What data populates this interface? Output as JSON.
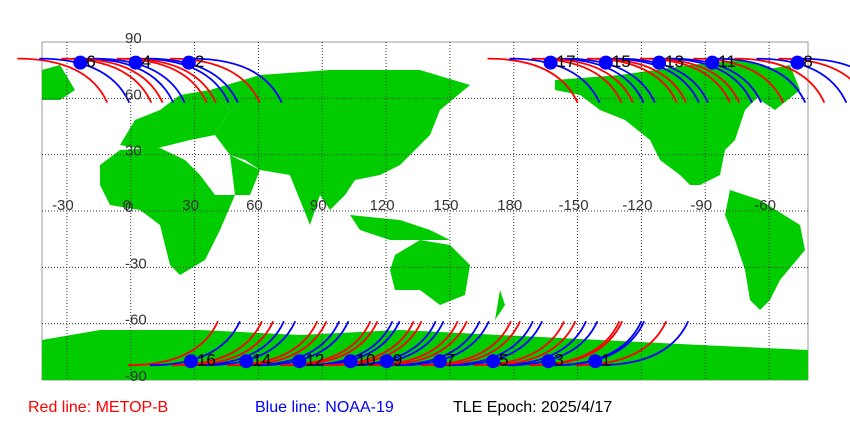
{
  "map": {
    "lon_range": [
      -45,
      315
    ],
    "lat_range": [
      -90,
      90
    ],
    "lon_ticks": [
      -30,
      0,
      30,
      60,
      90,
      120,
      150,
      180,
      {
        "value": 210,
        "label": "-150"
      },
      {
        "value": 240,
        "label": "-120"
      },
      {
        "value": 270,
        "label": "-90"
      },
      {
        "value": 300,
        "label": "-60"
      }
    ],
    "lat_ticks": [
      90,
      60,
      30,
      0,
      -30,
      -60,
      -90
    ],
    "marker_color": "#0000ff"
  },
  "passes": [
    {
      "label": "6",
      "lon": -27,
      "lat": 79
    },
    {
      "label": "4",
      "lon": -1,
      "lat": 79
    },
    {
      "label": "2",
      "lon": 24,
      "lat": 79
    },
    {
      "label": "17",
      "lon": 194,
      "lat": 79
    },
    {
      "label": "15",
      "lon": 220,
      "lat": 79
    },
    {
      "label": "13",
      "lon": 245,
      "lat": 79
    },
    {
      "label": "11",
      "lon": 270,
      "lat": 79
    },
    {
      "label": "8",
      "lon": 310,
      "lat": 79
    },
    {
      "label": "16",
      "lon": 25,
      "lat": -80
    },
    {
      "label": "14",
      "lon": 51,
      "lat": -80
    },
    {
      "label": "12",
      "lon": 76,
      "lat": -80
    },
    {
      "label": "10",
      "lon": 100,
      "lat": -80
    },
    {
      "label": "9",
      "lon": 117,
      "lat": -80
    },
    {
      "label": "7",
      "lon": 142,
      "lat": -80
    },
    {
      "label": "5",
      "lon": 167,
      "lat": -80
    },
    {
      "label": "3",
      "lon": 193,
      "lat": -80
    },
    {
      "label": "1",
      "lon": 215,
      "lat": -80
    }
  ],
  "legend": [
    {
      "text": "Red line: METOP-B",
      "color": "#ff0000"
    },
    {
      "text": "Blue line: NOAA-19",
      "color": "#0000ff"
    }
  ],
  "epoch": "TLE Epoch: 2025/4/17"
}
